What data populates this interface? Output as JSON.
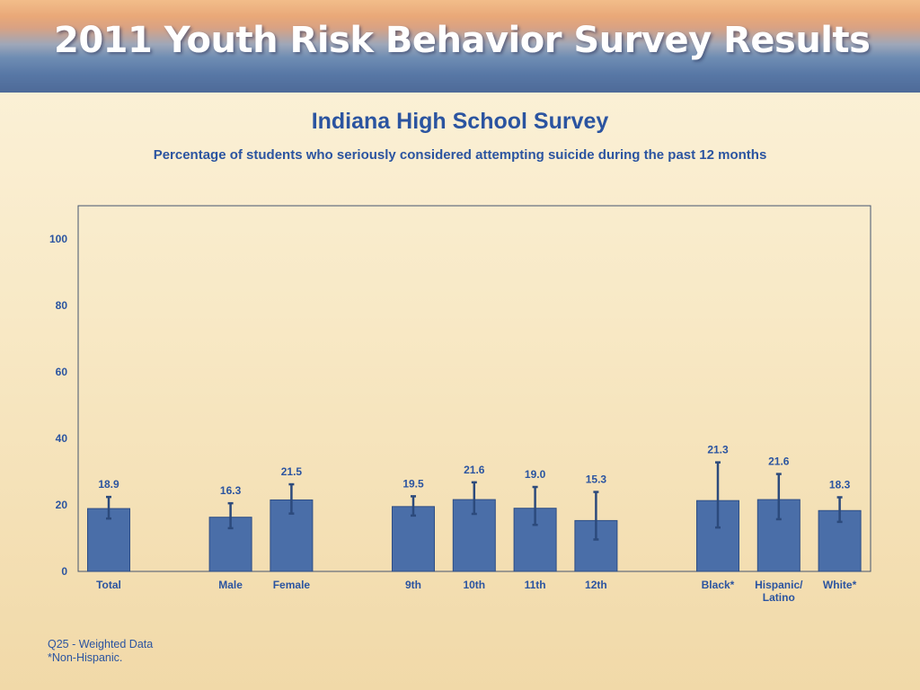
{
  "banner": {
    "title": "2011 Youth Risk Behavior Survey Results"
  },
  "slide": {
    "title": "Indiana High School Survey",
    "subtitle": "Percentage of students who seriously considered attempting suicide during the past 12 months"
  },
  "footnotes": {
    "question": "Q25 - Weighted Data",
    "note": "*Non-Hispanic."
  },
  "colors": {
    "bar": "#4a6ea8",
    "bar_edge": "#2d4d85",
    "error_bar": "#2c4a7c",
    "text": "#2b54a0",
    "frame": "#44546e"
  },
  "chart_data": {
    "type": "bar",
    "title": "",
    "xlabel": "",
    "ylabel": "",
    "ylim": [
      0,
      100
    ],
    "yticks": [
      0,
      20,
      40,
      60,
      80,
      100
    ],
    "categories": [
      "Total",
      "",
      "Male",
      "Female",
      "",
      "9th",
      "10th",
      "11th",
      "12th",
      "",
      "Black*",
      "Hispanic/\nLatino",
      "White*"
    ],
    "values": [
      18.9,
      null,
      16.3,
      21.5,
      null,
      19.5,
      21.6,
      19.0,
      15.3,
      null,
      21.3,
      21.6,
      18.3
    ],
    "value_labels": [
      "18.9",
      "",
      "16.3",
      "21.5",
      "",
      "19.5",
      "21.6",
      "19.0",
      "15.3",
      "",
      "21.3",
      "21.6",
      "18.3"
    ],
    "error_low": [
      15.9,
      null,
      13.0,
      17.4,
      null,
      16.8,
      17.3,
      14.0,
      9.6,
      null,
      13.2,
      15.7,
      14.9
    ],
    "error_high": [
      22.4,
      null,
      20.5,
      26.2,
      null,
      22.6,
      26.8,
      25.4,
      23.9,
      null,
      32.8,
      29.3,
      22.3
    ],
    "legend": "none",
    "grid": false
  }
}
